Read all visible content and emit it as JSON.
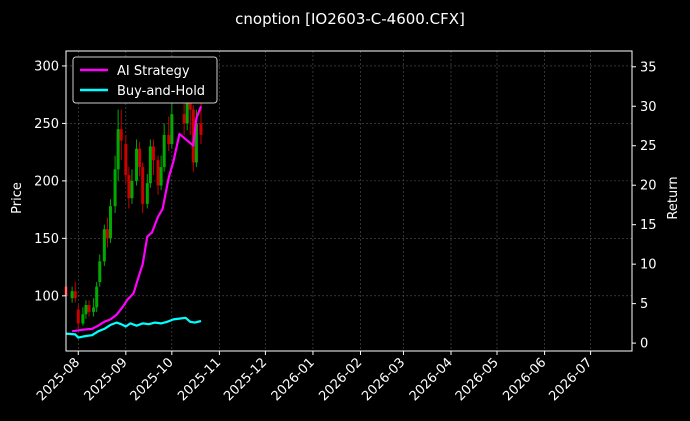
{
  "chart_data": {
    "type": "line",
    "title": "cnoption [IO2603-C-4600.CFX]",
    "ylabel_left": "Price",
    "ylabel_right": "Return",
    "x_ticks": [
      "2025-08",
      "2025-09",
      "2025-10",
      "2025-11",
      "2025-12",
      "2026-01",
      "2026-02",
      "2026-03",
      "2026-04",
      "2026-05",
      "2026-06",
      "2026-07"
    ],
    "x_range": [
      "2025-07-24",
      "2026-07-28"
    ],
    "y_left_ticks": [
      100,
      150,
      200,
      250,
      300
    ],
    "y_left_range": [
      52,
      313
    ],
    "y_right_ticks": [
      0,
      5,
      10,
      15,
      20,
      25,
      30,
      35
    ],
    "y_right_range": [
      -1,
      37
    ],
    "grid": true,
    "legend_position": "top-left",
    "colors": {
      "background": "#000000",
      "up": "#00aa00",
      "down": "#cc0000",
      "ai": "#ff00ff",
      "bh": "#00ffff",
      "grid": "#555555"
    },
    "candles": [
      {
        "d": "2025-07-24",
        "o": 108,
        "c": 100,
        "h": 110,
        "l": 96
      },
      {
        "d": "2025-07-28",
        "o": 98,
        "c": 104,
        "h": 108,
        "l": 94
      },
      {
        "d": "2025-07-30",
        "o": 104,
        "c": 98,
        "h": 112,
        "l": 94
      },
      {
        "d": "2025-08-01",
        "o": 88,
        "c": 76,
        "h": 92,
        "l": 72
      },
      {
        "d": "2025-08-04",
        "o": 76,
        "c": 84,
        "h": 90,
        "l": 74
      },
      {
        "d": "2025-08-06",
        "o": 84,
        "c": 92,
        "h": 96,
        "l": 80
      },
      {
        "d": "2025-08-08",
        "o": 92,
        "c": 86,
        "h": 96,
        "l": 82
      },
      {
        "d": "2025-08-11",
        "o": 86,
        "c": 90,
        "h": 98,
        "l": 82
      },
      {
        "d": "2025-08-13",
        "o": 90,
        "c": 108,
        "h": 112,
        "l": 86
      },
      {
        "d": "2025-08-15",
        "o": 112,
        "c": 130,
        "h": 136,
        "l": 108
      },
      {
        "d": "2025-08-18",
        "o": 130,
        "c": 158,
        "h": 162,
        "l": 126
      },
      {
        "d": "2025-08-20",
        "o": 158,
        "c": 150,
        "h": 168,
        "l": 142
      },
      {
        "d": "2025-08-22",
        "o": 150,
        "c": 178,
        "h": 184,
        "l": 146
      },
      {
        "d": "2025-08-25",
        "o": 178,
        "c": 210,
        "h": 222,
        "l": 172
      },
      {
        "d": "2025-08-27",
        "o": 210,
        "c": 245,
        "h": 262,
        "l": 200
      },
      {
        "d": "2025-08-29",
        "o": 245,
        "c": 235,
        "h": 262,
        "l": 218
      },
      {
        "d": "2025-09-01",
        "o": 232,
        "c": 205,
        "h": 240,
        "l": 198
      },
      {
        "d": "2025-09-03",
        "o": 205,
        "c": 185,
        "h": 212,
        "l": 176
      },
      {
        "d": "2025-09-05",
        "o": 185,
        "c": 200,
        "h": 210,
        "l": 180
      },
      {
        "d": "2025-09-08",
        "o": 200,
        "c": 228,
        "h": 236,
        "l": 196
      },
      {
        "d": "2025-09-10",
        "o": 228,
        "c": 212,
        "h": 234,
        "l": 204
      },
      {
        "d": "2025-09-12",
        "o": 212,
        "c": 180,
        "h": 216,
        "l": 172
      },
      {
        "d": "2025-09-15",
        "o": 180,
        "c": 198,
        "h": 206,
        "l": 176
      },
      {
        "d": "2025-09-17",
        "o": 198,
        "c": 230,
        "h": 236,
        "l": 194
      },
      {
        "d": "2025-09-19",
        "o": 230,
        "c": 218,
        "h": 236,
        "l": 205
      },
      {
        "d": "2025-09-22",
        "o": 218,
        "c": 196,
        "h": 222,
        "l": 188
      },
      {
        "d": "2025-09-24",
        "o": 196,
        "c": 212,
        "h": 222,
        "l": 192
      },
      {
        "d": "2025-09-26",
        "o": 212,
        "c": 240,
        "h": 250,
        "l": 208
      },
      {
        "d": "2025-09-29",
        "o": 240,
        "c": 232,
        "h": 256,
        "l": 226
      },
      {
        "d": "2025-10-01",
        "o": 232,
        "c": 258,
        "h": 268,
        "l": 228
      },
      {
        "d": "2025-10-09",
        "o": 258,
        "c": 250,
        "h": 280,
        "l": 240
      },
      {
        "d": "2025-10-11",
        "o": 250,
        "c": 280,
        "h": 290,
        "l": 244
      },
      {
        "d": "2025-10-13",
        "o": 280,
        "c": 262,
        "h": 300,
        "l": 240
      },
      {
        "d": "2025-10-15",
        "o": 262,
        "c": 216,
        "h": 266,
        "l": 208
      },
      {
        "d": "2025-10-17",
        "o": 216,
        "c": 250,
        "h": 262,
        "l": 212
      },
      {
        "d": "2025-10-20",
        "o": 250,
        "c": 240,
        "h": 268,
        "l": 232
      }
    ],
    "series": [
      {
        "name": "AI Strategy",
        "color": "#ff00ff",
        "points": [
          [
            "2025-07-28",
            1.5
          ],
          [
            "2025-08-04",
            1.7
          ],
          [
            "2025-08-10",
            1.8
          ],
          [
            "2025-08-14",
            2.2
          ],
          [
            "2025-08-18",
            2.7
          ],
          [
            "2025-08-22",
            3.0
          ],
          [
            "2025-08-26",
            3.6
          ],
          [
            "2025-08-30",
            4.6
          ],
          [
            "2025-09-02",
            5.5
          ],
          [
            "2025-09-06",
            6.3
          ],
          [
            "2025-09-09",
            8.2
          ],
          [
            "2025-09-12",
            10.0
          ],
          [
            "2025-09-15",
            13.5
          ],
          [
            "2025-09-18",
            14.0
          ],
          [
            "2025-09-22",
            16.0
          ],
          [
            "2025-09-25",
            17.0
          ],
          [
            "2025-09-29",
            21.0
          ],
          [
            "2025-10-02",
            23.0
          ],
          [
            "2025-10-06",
            26.5
          ],
          [
            "2025-10-15",
            25.0
          ],
          [
            "2025-10-17",
            28.5
          ],
          [
            "2025-10-20",
            30.0
          ]
        ]
      },
      {
        "name": "Buy-and-Hold",
        "color": "#00ffff",
        "points": [
          [
            "2025-07-24",
            1.2
          ],
          [
            "2025-07-30",
            1.1
          ],
          [
            "2025-08-01",
            0.7
          ],
          [
            "2025-08-06",
            0.9
          ],
          [
            "2025-08-10",
            1.0
          ],
          [
            "2025-08-14",
            1.5
          ],
          [
            "2025-08-18",
            1.8
          ],
          [
            "2025-08-22",
            2.3
          ],
          [
            "2025-08-26",
            2.6
          ],
          [
            "2025-08-29",
            2.4
          ],
          [
            "2025-09-01",
            2.1
          ],
          [
            "2025-09-04",
            2.5
          ],
          [
            "2025-09-08",
            2.2
          ],
          [
            "2025-09-12",
            2.5
          ],
          [
            "2025-09-16",
            2.4
          ],
          [
            "2025-09-20",
            2.6
          ],
          [
            "2025-09-24",
            2.5
          ],
          [
            "2025-09-28",
            2.7
          ],
          [
            "2025-10-02",
            3.0
          ],
          [
            "2025-10-06",
            3.1
          ],
          [
            "2025-10-10",
            3.2
          ],
          [
            "2025-10-13",
            2.7
          ],
          [
            "2025-10-16",
            2.6
          ],
          [
            "2025-10-20",
            2.8
          ]
        ]
      }
    ]
  }
}
